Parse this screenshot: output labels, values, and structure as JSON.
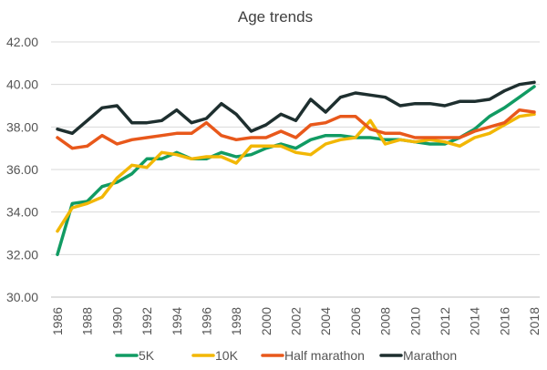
{
  "chart_data": {
    "type": "line",
    "title": "Age trends",
    "xlabel": "",
    "ylabel": "",
    "ylim": [
      30,
      42
    ],
    "y_ticks": [
      "30.00",
      "32.00",
      "34.00",
      "36.00",
      "38.00",
      "40.00",
      "42.00"
    ],
    "x_ticks": [
      "1986",
      "1988",
      "1990",
      "1992",
      "1994",
      "1996",
      "1998",
      "2000",
      "2002",
      "2004",
      "2006",
      "2008",
      "2010",
      "2012",
      "2014",
      "2016",
      "2018"
    ],
    "grid": "horizontal",
    "legend_position": "bottom",
    "x": [
      1986,
      1987,
      1988,
      1989,
      1990,
      1991,
      1992,
      1993,
      1994,
      1995,
      1996,
      1997,
      1998,
      1999,
      2000,
      2001,
      2002,
      2003,
      2004,
      2005,
      2006,
      2007,
      2008,
      2009,
      2010,
      2011,
      2012,
      2013,
      2014,
      2015,
      2016,
      2017,
      2018
    ],
    "series": [
      {
        "name": "5K",
        "color": "#119b63",
        "values": [
          32.0,
          34.4,
          34.5,
          35.2,
          35.4,
          35.8,
          36.5,
          36.5,
          36.8,
          36.5,
          36.5,
          36.8,
          36.6,
          36.7,
          37.0,
          37.2,
          37.0,
          37.4,
          37.6,
          37.6,
          37.5,
          37.5,
          37.4,
          37.4,
          37.3,
          37.2,
          37.2,
          37.5,
          37.9,
          38.5,
          38.9,
          39.4,
          39.9
        ]
      },
      {
        "name": "10K",
        "color": "#f2b705",
        "values": [
          33.1,
          34.2,
          34.4,
          34.7,
          35.6,
          36.2,
          36.1,
          36.8,
          36.7,
          36.5,
          36.6,
          36.6,
          36.3,
          37.1,
          37.1,
          37.1,
          36.8,
          36.7,
          37.2,
          37.4,
          37.5,
          38.3,
          37.2,
          37.4,
          37.3,
          37.4,
          37.3,
          37.1,
          37.5,
          37.7,
          38.1,
          38.5,
          38.6
        ]
      },
      {
        "name": "Half marathon",
        "color": "#e8581b",
        "values": [
          37.5,
          37.0,
          37.1,
          37.6,
          37.2,
          37.4,
          37.5,
          37.6,
          37.7,
          37.7,
          38.2,
          37.6,
          37.4,
          37.5,
          37.5,
          37.8,
          37.5,
          38.1,
          38.2,
          38.5,
          38.5,
          37.9,
          37.7,
          37.7,
          37.5,
          37.5,
          37.5,
          37.5,
          37.8,
          38.0,
          38.2,
          38.8,
          38.7
        ]
      },
      {
        "name": "Marathon",
        "color": "#1e2f2f",
        "values": [
          37.9,
          37.7,
          38.3,
          38.9,
          39.0,
          38.2,
          38.2,
          38.3,
          38.8,
          38.2,
          38.4,
          39.1,
          38.6,
          37.8,
          38.1,
          38.6,
          38.3,
          39.3,
          38.7,
          39.4,
          39.6,
          39.5,
          39.4,
          39.0,
          39.1,
          39.1,
          39.0,
          39.2,
          39.2,
          39.3,
          39.7,
          40.0,
          40.1
        ]
      }
    ]
  }
}
